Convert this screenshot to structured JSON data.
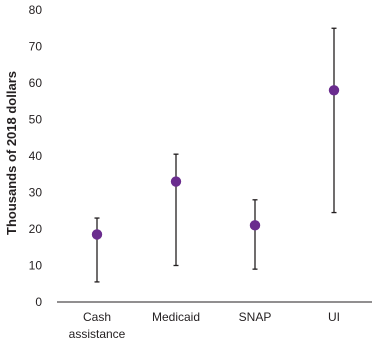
{
  "chart_data": {
    "type": "scatter",
    "subtype": "point-with-range",
    "title": "",
    "xlabel": "",
    "ylabel": "Thousands of 2018 dollars",
    "ylim": [
      0,
      80
    ],
    "yticks": [
      0,
      10,
      20,
      30,
      40,
      50,
      60,
      70,
      80
    ],
    "grid": false,
    "categories": [
      {
        "lines": [
          "Cash",
          "assistance"
        ]
      },
      {
        "lines": [
          "Medicaid"
        ]
      },
      {
        "lines": [
          "SNAP"
        ]
      },
      {
        "lines": [
          "UI"
        ]
      }
    ],
    "points": [
      {
        "value": 18.5,
        "low": 5.5,
        "high": 23
      },
      {
        "value": 33,
        "low": 10,
        "high": 40.5
      },
      {
        "value": 21,
        "low": 9,
        "high": 28
      },
      {
        "value": 58,
        "low": 24.5,
        "high": 75
      }
    ],
    "colors": {
      "point": "#6a2c8e",
      "bar": "#231f20",
      "axis": "#231f20"
    }
  }
}
